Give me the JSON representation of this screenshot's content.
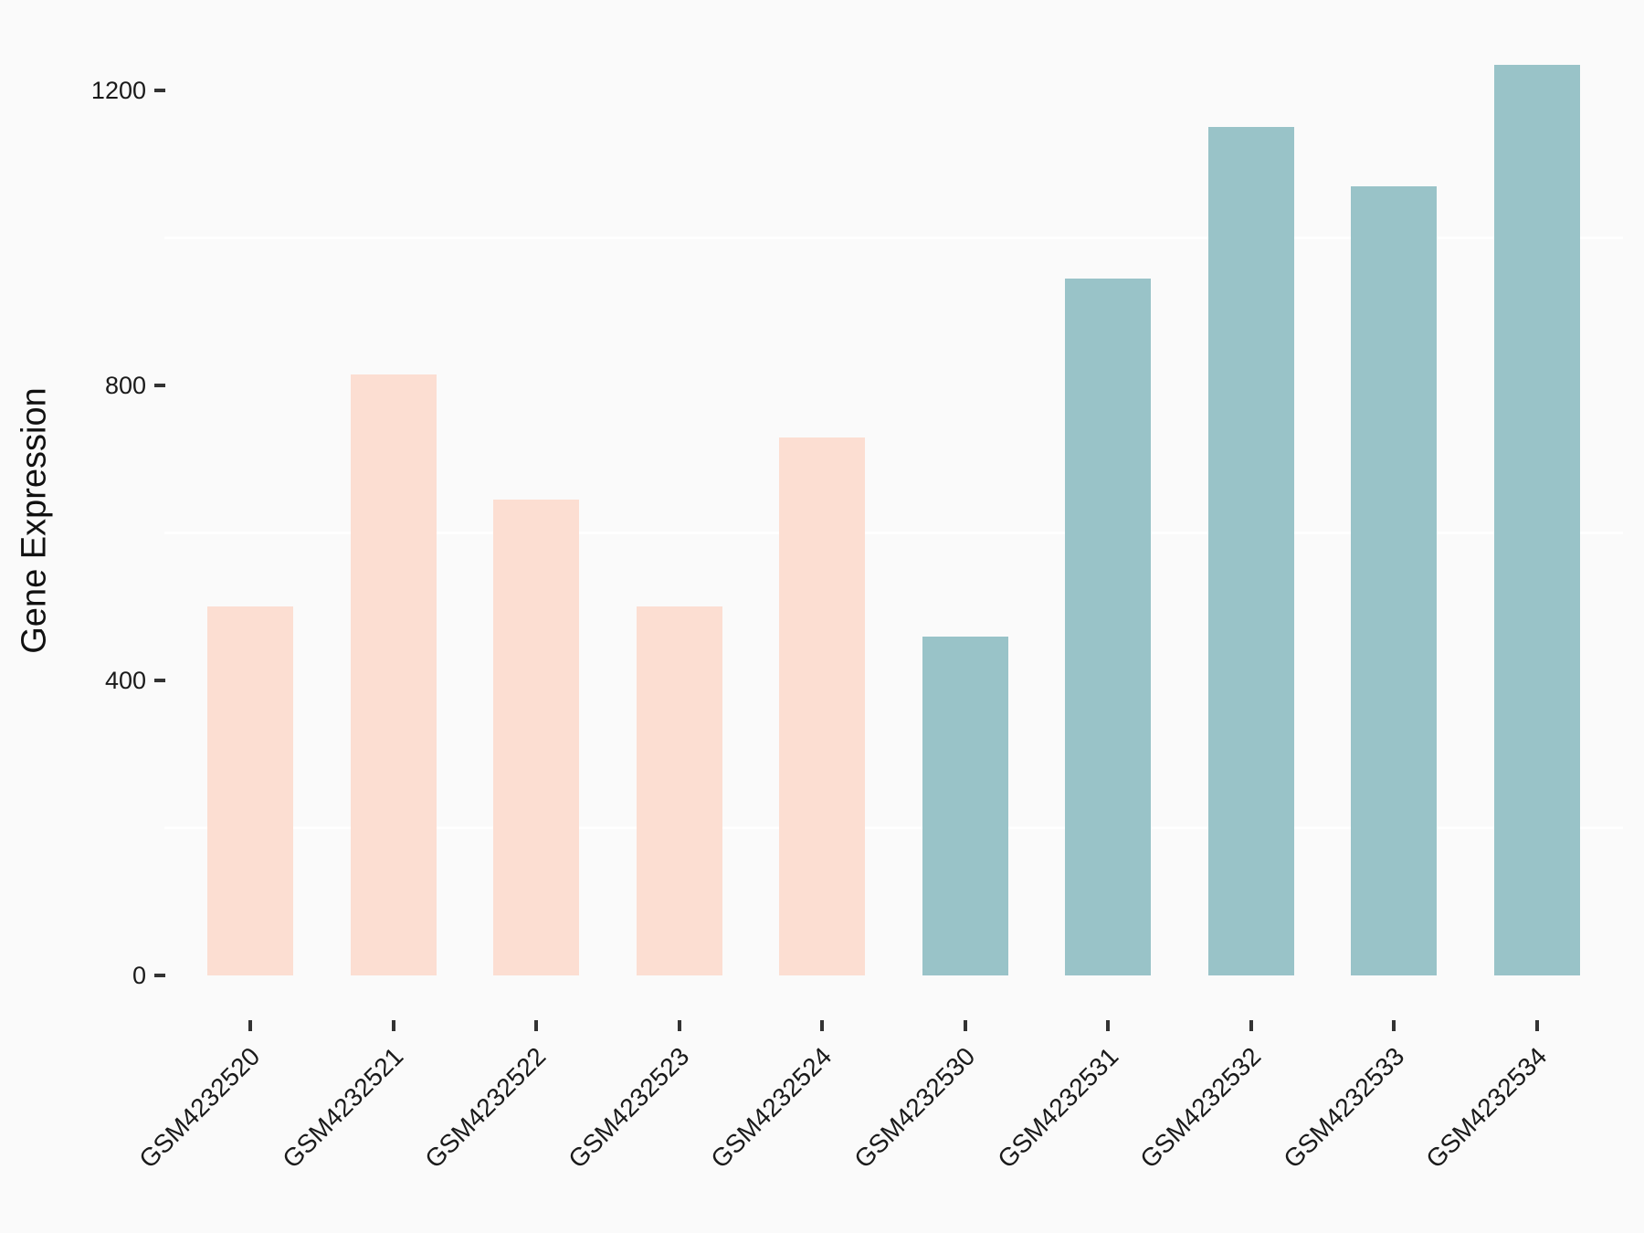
{
  "figure": {
    "background_color": "#fafafa",
    "gridline_color": "#ffffff",
    "tick_mark_color": "#333333",
    "text_color": "#1a1a1a"
  },
  "chart_data": {
    "type": "bar",
    "title": "",
    "xlabel": "",
    "ylabel": "Gene Expression",
    "categories": [
      "GSM4232520",
      "GSM4232521",
      "GSM4232522",
      "GSM4232523",
      "GSM4232524",
      "GSM4232530",
      "GSM4232531",
      "GSM4232532",
      "GSM4232533",
      "GSM4232534"
    ],
    "values": [
      500,
      815,
      645,
      500,
      730,
      460,
      945,
      1150,
      1070,
      1235
    ],
    "groups": [
      "pink",
      "pink",
      "pink",
      "pink",
      "pink",
      "teal",
      "teal",
      "teal",
      "teal",
      "teal"
    ],
    "group_colors": {
      "pink": "#fcded2",
      "teal": "#99c3c8"
    },
    "ylim": [
      0,
      1295
    ],
    "yticks": [
      0,
      400,
      800,
      1200
    ],
    "ytick_labels": [
      "0",
      "400",
      "800",
      "1200"
    ],
    "minor_gridlines": [
      200,
      600,
      1000
    ],
    "grid": "minor-horizontal-only",
    "legend": "none",
    "x_label_rotation_deg": 45,
    "bar_relative_width": 0.6
  }
}
